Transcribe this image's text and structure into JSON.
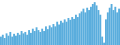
{
  "chart_data": {
    "type": "bar",
    "values": [
      18,
      22,
      15,
      25,
      20,
      28,
      18,
      24,
      20,
      26,
      22,
      30,
      25,
      28,
      22,
      32,
      26,
      35,
      30,
      38,
      32,
      28,
      35,
      30,
      40,
      34,
      42,
      38,
      45,
      40,
      50,
      44,
      52,
      48,
      55,
      50,
      58,
      54,
      60,
      56,
      65,
      60,
      68,
      72,
      78,
      70,
      80,
      75,
      82,
      88,
      92,
      85,
      75,
      65,
      18,
      5,
      55,
      70,
      80,
      88,
      75,
      82,
      70,
      78
    ],
    "color": "#5aaddd",
    "ylim": [
      0,
      96.6
    ],
    "tick_labels": false
  }
}
